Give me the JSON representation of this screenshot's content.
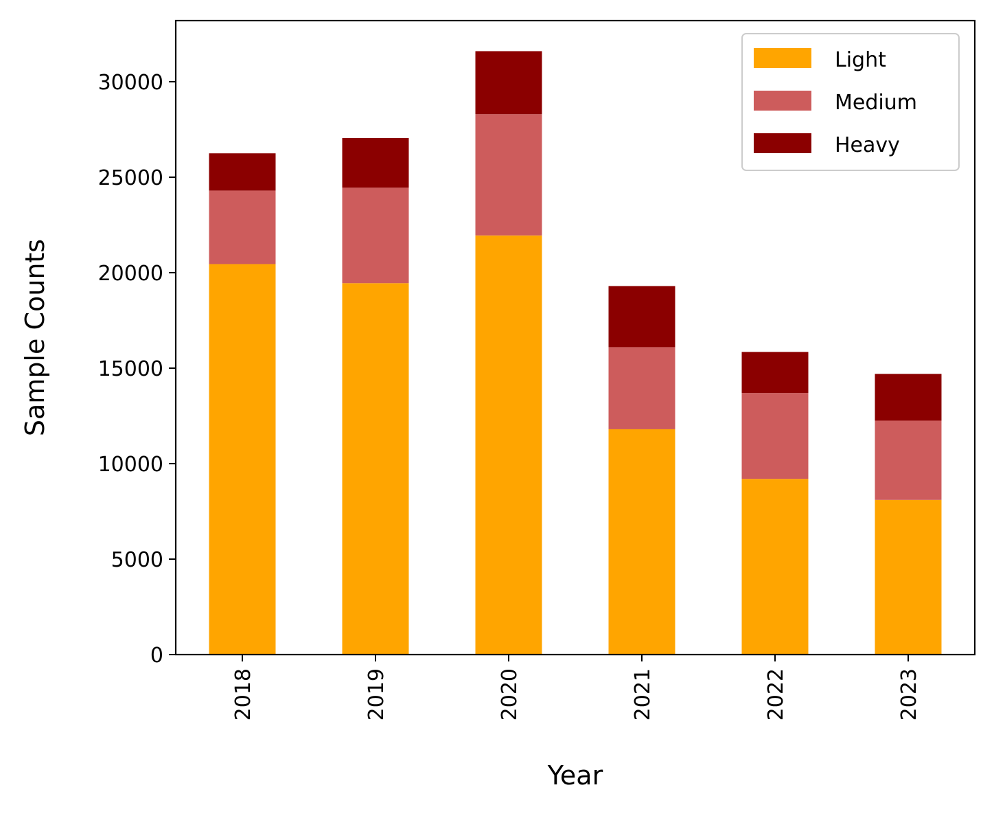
{
  "chart_data": {
    "type": "bar",
    "stacked": true,
    "title": "",
    "xlabel": "Year",
    "ylabel": "Sample Counts",
    "categories": [
      "2018",
      "2019",
      "2020",
      "2021",
      "2022",
      "2023"
    ],
    "series": [
      {
        "name": "Light",
        "color": "#FFA500",
        "values": [
          20450,
          19450,
          21950,
          11800,
          9200,
          8100
        ]
      },
      {
        "name": "Medium",
        "color": "#CD5C5C",
        "values": [
          3850,
          5000,
          6350,
          4300,
          4500,
          4150
        ]
      },
      {
        "name": "Heavy",
        "color": "#8B0000",
        "values": [
          1950,
          2600,
          3300,
          3200,
          2150,
          2450
        ]
      }
    ],
    "ylim": [
      0,
      33200
    ],
    "yticks": [
      0,
      5000,
      10000,
      15000,
      20000,
      25000,
      30000
    ],
    "ytick_labels": [
      "0",
      "5000",
      "10000",
      "15000",
      "20000",
      "25000",
      "30000"
    ],
    "xtick_rotation": "vertical",
    "legend_position": "top-right",
    "grid": false
  }
}
